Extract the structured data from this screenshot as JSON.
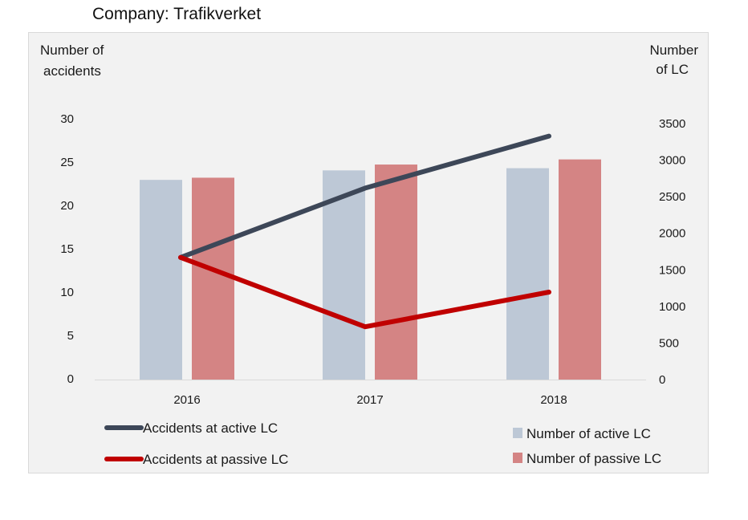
{
  "header": {
    "title": "Company: Trafikverket"
  },
  "colors": {
    "active_bar": "#bdc8d6",
    "passive_bar": "#d48484",
    "active_line": "#3d4758",
    "passive_line": "#c00000",
    "background": "#f2f2f2"
  },
  "chart_data": {
    "type": "bar",
    "categories": [
      "2016",
      "2017",
      "2018"
    ],
    "left_axis": {
      "label_lines": [
        "Number of",
        "accidents"
      ],
      "range": [
        0,
        30
      ],
      "ticks": [
        0,
        5,
        10,
        15,
        20,
        25,
        30
      ],
      "tick_labels": [
        "0",
        "5",
        "10",
        "15",
        "20",
        "25",
        "30"
      ]
    },
    "right_axis": {
      "label_lines": [
        "Number",
        "of LC"
      ],
      "range": [
        0,
        3500
      ],
      "ticks": [
        0,
        500,
        1000,
        1500,
        2000,
        2500,
        3000,
        3500
      ],
      "tick_labels": [
        "0",
        "500",
        "1000",
        "1500",
        "2000",
        "2500",
        "3000",
        "3500"
      ]
    },
    "bar_series": [
      {
        "name": "Number of active LC",
        "axis": "right",
        "values": [
          2730,
          2860,
          2890
        ]
      },
      {
        "name": "Number of passive LC",
        "axis": "right",
        "values": [
          2760,
          2940,
          3010
        ]
      }
    ],
    "line_series": [
      {
        "name": "Accidents at active LC",
        "axis": "left",
        "values": [
          14,
          22,
          28
        ]
      },
      {
        "name": "Accidents at passive LC",
        "axis": "left",
        "values": [
          14,
          6,
          10
        ]
      }
    ],
    "grid": false,
    "legend": "bottom"
  }
}
